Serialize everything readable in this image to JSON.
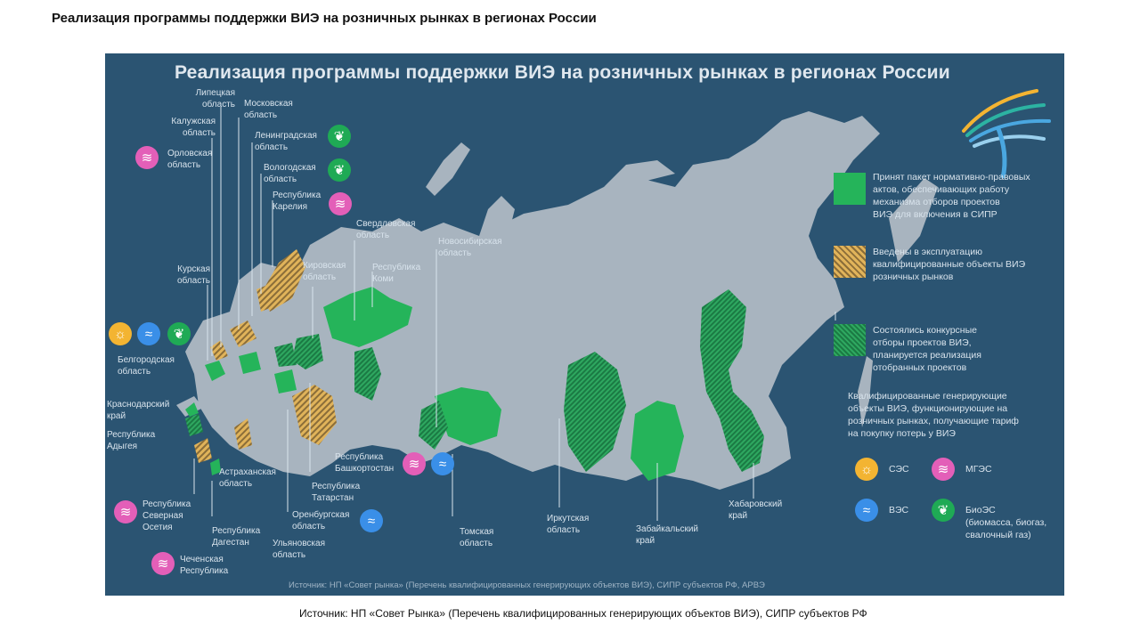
{
  "page_title": "Реализация программы поддержки ВИЭ на розничных рынках в регионах России",
  "panel_title": "Реализация программы поддержки ВИЭ на розничных рынках в регионах России",
  "colors": {
    "panel_bg": "#2b5472",
    "land": "#a8b4bf",
    "green": "#25b45a",
    "hatch_dark": "#8a6d39",
    "hatch_light": "#e0b35a",
    "ses": "#f3b432",
    "ves": "#3a8fe8",
    "bioes": "#1faa55",
    "mges": "#e35fb8"
  },
  "regions": {
    "lipetsk": "Липецкая\nобласть",
    "moscow": "Московская\nобласть",
    "kaluga": "Калужская\nобласть",
    "leningrad": "Ленинградская\nобласть",
    "orel": "Орловская\nобласть",
    "vologda": "Вологодская\nобласть",
    "karelia": "Республика\nКарелия",
    "sverdlovsk": "Свердловская\nобласть",
    "novosibirsk": "Новосибирская\nобласть",
    "kursk": "Курская\nобласть",
    "kirov": "Кировская\nобласть",
    "komi": "Республика\nКоми",
    "belgorod": "Белгородская\nобласть",
    "krasnodar": "Краснодарский\nкрай",
    "adygea": "Республика\nАдыгея",
    "astrakhan": "Астраханская\nобласть",
    "bashkortostan": "Республика\nБашкортостан",
    "tatarstan": "Республика\nТатарстан",
    "orenburg": "Оренбургская\nобласть",
    "ulyanovsk": "Ульяновская\nобласть",
    "n_ossetia": "Республика\nСеверная\nОсетия",
    "dagestan": "Республика\nДагестан",
    "chechnya": "Чеченская\nРеспублика",
    "tomsk": "Томская\nобласть",
    "irkutsk": "Иркутская\nобласть",
    "zabaykalsky": "Забайкальский\nкрай",
    "khabarovsk": "Хабаровский\nкрай"
  },
  "legend": {
    "green": "Принят пакет нормативно-правовых\nактов, обеспечивающих работу\nмеханизма отборов проектов\nВИЭ для включения в СИПР",
    "hatch": "Введены в эксплуатацию\nквалифицированные объекты ВИЭ\nрозничных рынков",
    "dots": "Состоялись конкурсные\nотборы проектов ВИЭ,\nпланируется реализация\nотобранных проектов",
    "objects_title": "Квалифицированные генерирующие\nобъекты ВИЭ, функционирующие на\nрозничных рынках, получающие тариф\nна покупку потерь у ВИЭ",
    "ses": "СЭС",
    "mges": "МГЭС",
    "ves": "ВЭС",
    "bioes": "БиоЭС\n(биомасса, биогаз,\nсвалочный газ)"
  },
  "icons": {
    "ses": "sun-icon",
    "ves": "wind-icon",
    "bioes": "leaf-icon",
    "mges": "water-icon"
  },
  "panel_source": "Источник: НП «Совет рынка» (Перечень квалифицированных генерирующих объектов ВИЭ), СИПР субъектов РФ, АРВЭ",
  "page_source": "Источник: НП «Совет Рынка» (Перечень квалифицированных генерирующих объектов ВИЭ), СИПР субъектов РФ"
}
